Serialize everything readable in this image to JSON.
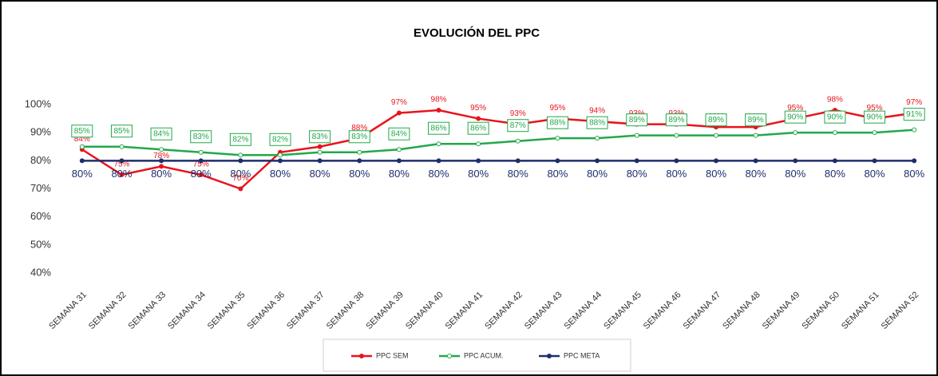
{
  "chart_data": {
    "type": "line",
    "title": "EVOLUCIÓN DEL PPC",
    "categories": [
      "SEMANA 31",
      "SEMANA 32",
      "SEMANA 33",
      "SEMANA 34",
      "SEMANA 35",
      "SEMANA 36",
      "SEMANA 37",
      "SEMANA 38",
      "SEMANA 39",
      "SEMANA 40",
      "SEMANA 41",
      "SEMANA 42",
      "SEMANA 43",
      "SEMANA 44",
      "SEMANA 45",
      "SEMANA 46",
      "SEMANA 47",
      "SEMANA 48",
      "SEMANA 49",
      "SEMANA 50",
      "SEMANA 51",
      "SEMANA 52"
    ],
    "series": [
      {
        "name": "PPC SEM",
        "color": "#e8141b",
        "values": [
          84,
          75,
          78,
          75,
          70,
          83,
          85,
          88,
          97,
          98,
          95,
          93,
          95,
          94,
          93,
          93,
          92,
          92,
          95,
          98,
          95,
          97
        ],
        "value_labels": [
          "84%",
          "75%",
          "78%",
          "75%",
          "70%",
          "83%",
          "85%",
          "88%",
          "97%",
          "98%",
          "95%",
          "93%",
          "95%",
          "94%",
          "93%",
          "93%",
          "92%",
          "92%",
          "95%",
          "98%",
          "95%",
          "97%"
        ]
      },
      {
        "name": "PPC ACUM.",
        "color": "#22a84a",
        "values": [
          85,
          85,
          84,
          83,
          82,
          82,
          83,
          83,
          84,
          86,
          86,
          87,
          88,
          88,
          89,
          89,
          89,
          89,
          90,
          90,
          90,
          91
        ],
        "value_labels": [
          "85%",
          "85%",
          "84%",
          "83%",
          "82%",
          "82%",
          "83%",
          "83%",
          "84%",
          "86%",
          "86%",
          "87%",
          "88%",
          "88%",
          "89%",
          "89%",
          "89%",
          "89%",
          "90%",
          "90%",
          "90%",
          "91%"
        ]
      },
      {
        "name": "PPC META",
        "color": "#1f2d6b",
        "values": [
          80,
          80,
          80,
          80,
          80,
          80,
          80,
          80,
          80,
          80,
          80,
          80,
          80,
          80,
          80,
          80,
          80,
          80,
          80,
          80,
          80,
          80
        ],
        "value_labels": [
          "80%",
          "80%",
          "80%",
          "80%",
          "80%",
          "80%",
          "80%",
          "80%",
          "80%",
          "80%",
          "80%",
          "80%",
          "80%",
          "80%",
          "80%",
          "80%",
          "80%",
          "80%",
          "80%",
          "80%",
          "80%",
          "80%"
        ]
      }
    ],
    "ylim": [
      35,
      110
    ],
    "yticks": [
      {
        "value": 40,
        "label": "40%"
      },
      {
        "value": 50,
        "label": "50%"
      },
      {
        "value": 60,
        "label": "60%"
      },
      {
        "value": 70,
        "label": "70%"
      },
      {
        "value": 80,
        "label": "80%"
      },
      {
        "value": 90,
        "label": "90%"
      },
      {
        "value": 100,
        "label": "100%"
      }
    ],
    "grid": false,
    "legend": "bottom"
  }
}
